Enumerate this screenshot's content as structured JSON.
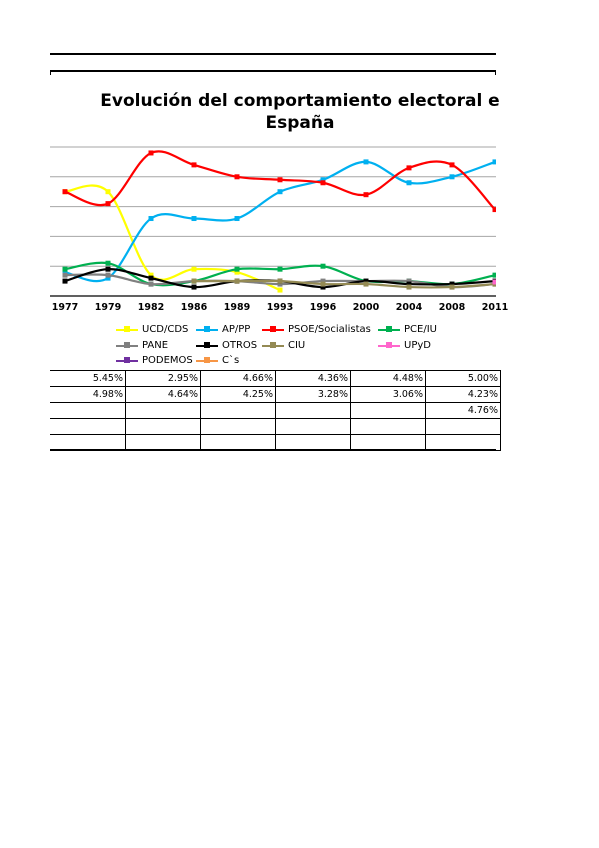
{
  "chart_data": {
    "type": "line",
    "title": "Evolución del comportamiento electoral e",
    "title_line2": "España",
    "categories": [
      "1977",
      "1979",
      "1982",
      "1986",
      "1989",
      "1993",
      "1996",
      "2000",
      "2004",
      "2008",
      "2011"
    ],
    "ylim": [
      0,
      50
    ],
    "grid": true,
    "legend_position": "bottom",
    "series": [
      {
        "name": "UCD/CDS",
        "color": "#ffff00",
        "values": [
          35,
          35,
          7,
          9,
          8,
          2,
          null,
          null,
          null,
          null,
          null
        ]
      },
      {
        "name": "AP/PP",
        "color": "#00b0f0",
        "values": [
          8,
          6,
          26,
          26,
          26,
          35,
          39,
          45,
          38,
          40,
          45
        ]
      },
      {
        "name": "PSOE/Socialistas",
        "color": "#ff0000",
        "values": [
          35,
          31,
          48,
          44,
          40,
          39,
          38,
          34,
          43,
          44,
          29
        ]
      },
      {
        "name": "PCE/IU",
        "color": "#00b050",
        "values": [
          9,
          11,
          4,
          5,
          9,
          9,
          10,
          5,
          5,
          4,
          7
        ]
      },
      {
        "name": "PANE",
        "color": "#808080",
        "values": [
          7,
          7,
          4,
          5,
          5,
          4,
          5,
          5,
          5,
          3,
          4
        ]
      },
      {
        "name": "OTROS",
        "color": "#000000",
        "values": [
          5,
          9,
          6,
          3,
          5,
          5,
          3,
          5,
          4,
          4,
          5
        ]
      },
      {
        "name": "CIU",
        "color": "#948a54",
        "values": [
          null,
          null,
          null,
          5,
          5,
          5,
          4,
          4,
          3,
          3,
          4
        ]
      },
      {
        "name": "UPyD",
        "color": "#ff66cc",
        "values": [
          null,
          null,
          null,
          null,
          null,
          null,
          null,
          null,
          null,
          null,
          4.7
        ]
      },
      {
        "name": "PODEMOS",
        "color": "#7030a0",
        "values": [
          null,
          null,
          null,
          null,
          null,
          null,
          null,
          null,
          null,
          null,
          null
        ]
      },
      {
        "name": "C`s",
        "color": "#f79646",
        "values": [
          null,
          null,
          null,
          null,
          null,
          null,
          null,
          null,
          null,
          null,
          null
        ]
      }
    ]
  },
  "legend": [
    {
      "label": "UCD/CDS",
      "color": "#ffff00"
    },
    {
      "label": "AP/PP",
      "color": "#00b0f0"
    },
    {
      "label": "PSOE/Socialistas",
      "color": "#ff0000"
    },
    {
      "label": "PCE/IU",
      "color": "#00b050"
    },
    {
      "label": "PANE",
      "color": "#808080"
    },
    {
      "label": "OTROS",
      "color": "#000000"
    },
    {
      "label": "CIU",
      "color": "#948a54"
    },
    {
      "label": "UPyD",
      "color": "#ff66cc"
    },
    {
      "label": "PODEMOS",
      "color": "#7030a0"
    },
    {
      "label": "C`s",
      "color": "#f79646"
    }
  ],
  "table": {
    "rows": [
      [
        "5.45%",
        "2.95%",
        "4.66%",
        "4.36%",
        "4.48%",
        "5.00%"
      ],
      [
        "4.98%",
        "4.64%",
        "4.25%",
        "3.28%",
        "3.06%",
        "4.23%"
      ],
      [
        "",
        "",
        "",
        "",
        "",
        "4.76%"
      ],
      [
        "",
        "",
        "",
        "",
        "",
        ""
      ],
      [
        "",
        "",
        "",
        "",
        "",
        ""
      ]
    ]
  }
}
